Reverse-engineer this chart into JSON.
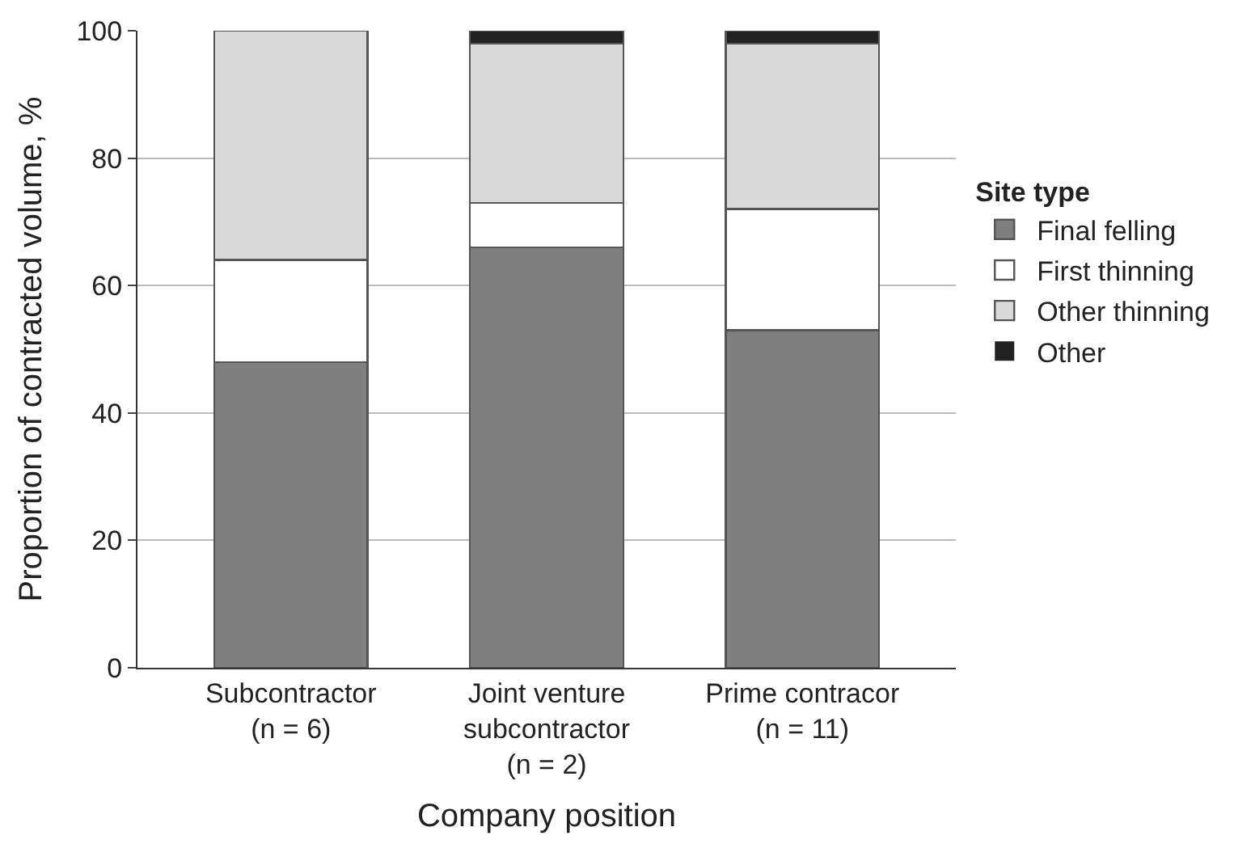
{
  "chart_data": {
    "type": "bar",
    "stacked": true,
    "xlabel": "Company position",
    "ylabel": "Proportion of contracted volume, %",
    "legend_title": "Site type",
    "categories": [
      "Subcontractor\n(n = 6)",
      "Joint venture\nsubcontractor\n(n = 2)",
      "Prime contracor\n(n = 11)"
    ],
    "series": [
      {
        "name": "Final felling",
        "color": "#7f7f7f",
        "values": [
          48,
          66,
          53
        ]
      },
      {
        "name": "First thinning",
        "color": "#ffffff",
        "values": [
          16,
          7,
          19
        ]
      },
      {
        "name": "Other thinning",
        "color": "#d9d9d9",
        "values": [
          36,
          25,
          26
        ]
      },
      {
        "name": "Other",
        "color": "#222222",
        "values": [
          0,
          2,
          2
        ]
      }
    ],
    "ylim": [
      0,
      100
    ],
    "yticks": [
      0,
      20,
      40,
      60,
      80,
      100
    ],
    "grid": "y",
    "legend": "right"
  }
}
